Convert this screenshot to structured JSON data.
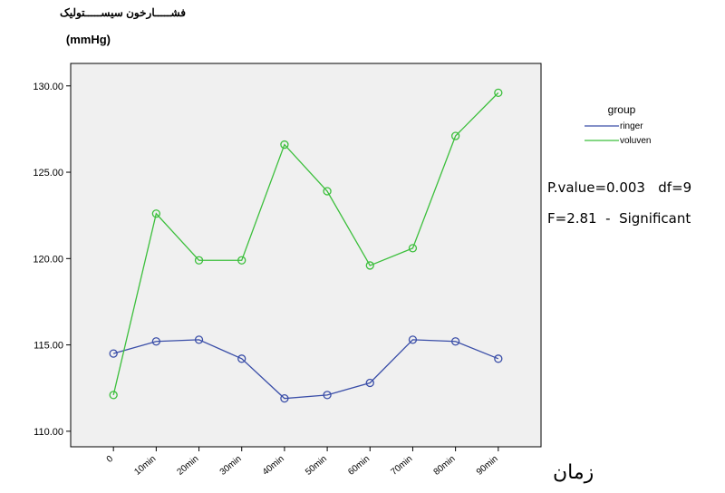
{
  "chart_data": {
    "type": "line",
    "title": "فشـــــارخون سیســـــتولیک",
    "subtitle": "(mmHg)",
    "x_label": "زمان",
    "categories": [
      "0",
      "10min",
      "20min",
      "30min",
      "40min",
      "50min",
      "60min",
      "70min",
      "80min",
      "90min"
    ],
    "series": [
      {
        "name": "ringer",
        "color": "#3a4ea8",
        "values": [
          114.5,
          115.2,
          115.3,
          114.2,
          111.9,
          112.1,
          112.8,
          115.3,
          115.2,
          114.2
        ]
      },
      {
        "name": "voluven",
        "color": "#3cbf3c",
        "values": [
          112.1,
          122.6,
          119.9,
          119.9,
          126.6,
          123.9,
          119.6,
          120.6,
          127.1,
          129.6
        ]
      }
    ],
    "ylim": [
      109.1,
      131.3
    ],
    "yticks": [
      {
        "value": 110,
        "label": "110.00"
      },
      {
        "value": 115,
        "label": "115.00"
      },
      {
        "value": 120,
        "label": "120.00"
      },
      {
        "value": 125,
        "label": "125.00"
      },
      {
        "value": 130,
        "label": "130.00"
      }
    ],
    "legend_title": "group",
    "legend": "right",
    "annotations": [
      "P.value=0.003   df=9",
      "F=2.81  -  Significant"
    ]
  }
}
